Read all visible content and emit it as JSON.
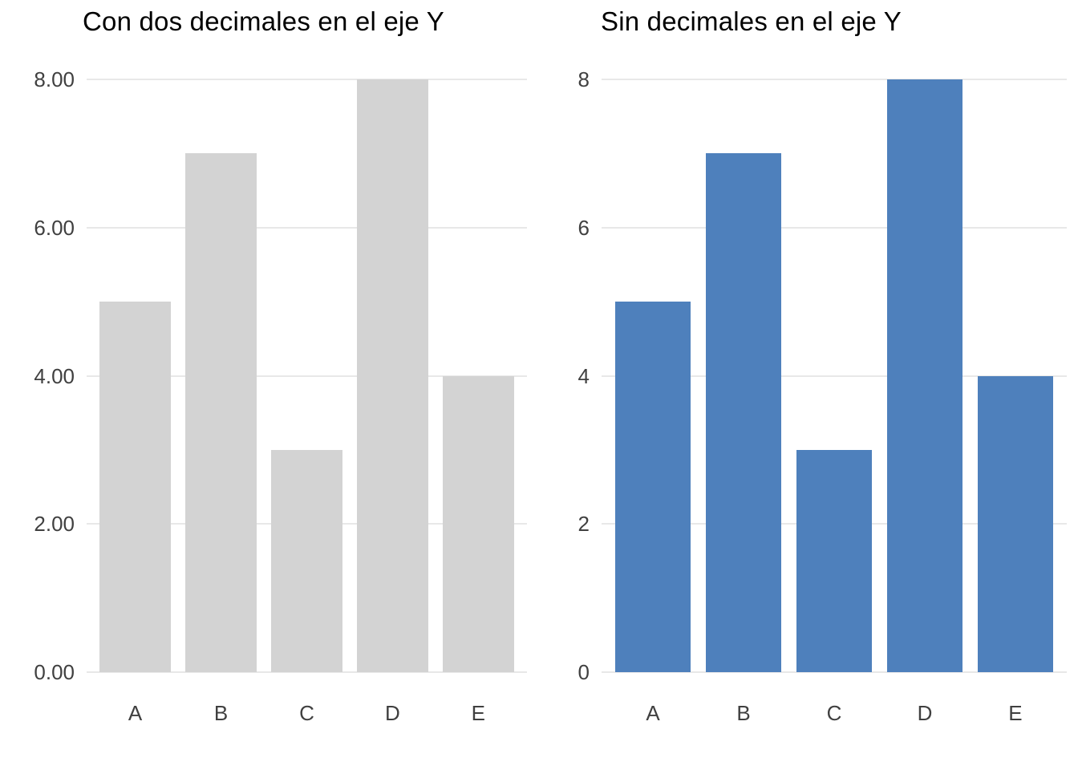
{
  "page": {
    "background": "#ffffff"
  },
  "styles": {
    "grid_color": "#e8e8e8",
    "tick_label_color": "#404040",
    "title_color": "#000000"
  },
  "chart_data": [
    {
      "type": "bar",
      "title": "Con dos decimales en el eje Y",
      "categories": [
        "A",
        "B",
        "C",
        "D",
        "E"
      ],
      "values": [
        5,
        7,
        3,
        8,
        4
      ],
      "bar_color": "#d3d3d3",
      "xlabel": "",
      "ylabel": "",
      "ylim": [
        0,
        8
      ],
      "y_ticks": [
        {
          "value": 0,
          "label": "0.00"
        },
        {
          "value": 2,
          "label": "2.00"
        },
        {
          "value": 4,
          "label": "4.00"
        },
        {
          "value": 6,
          "label": "6.00"
        },
        {
          "value": 8,
          "label": "8.00"
        }
      ],
      "grid": "horizontal",
      "legend": "none"
    },
    {
      "type": "bar",
      "title": "Sin decimales en el eje Y",
      "categories": [
        "A",
        "B",
        "C",
        "D",
        "E"
      ],
      "values": [
        5,
        7,
        3,
        8,
        4
      ],
      "bar_color": "#4e80bc",
      "xlabel": "",
      "ylabel": "",
      "ylim": [
        0,
        8
      ],
      "y_ticks": [
        {
          "value": 0,
          "label": "0"
        },
        {
          "value": 2,
          "label": "2"
        },
        {
          "value": 4,
          "label": "4"
        },
        {
          "value": 6,
          "label": "6"
        },
        {
          "value": 8,
          "label": "8"
        }
      ],
      "grid": "horizontal",
      "legend": "none"
    }
  ]
}
